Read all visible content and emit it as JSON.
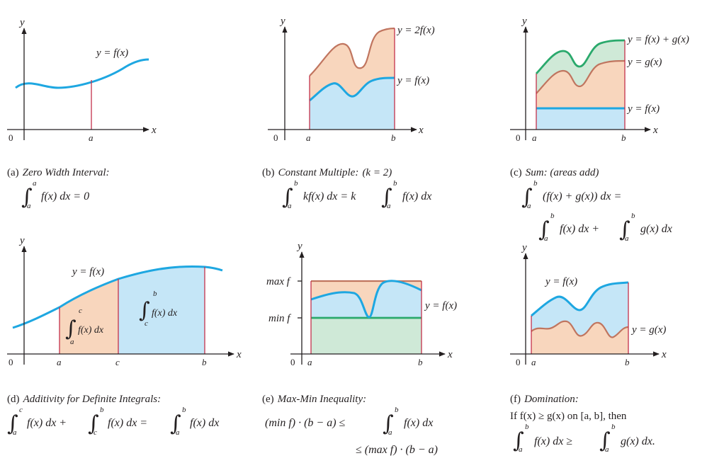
{
  "panels": [
    {
      "caption_label": "(a)",
      "caption_title": "Zero Width Interval:",
      "curve_label": "y = f(x)",
      "axis_y": "y",
      "axis_x": "x",
      "origin": "0",
      "tick_a": "a",
      "formula": {
        "int1_upper": "a",
        "int1_lower": "a",
        "text1": "f(x) dx  =  0"
      }
    },
    {
      "caption_label": "(b)",
      "caption_title": "Constant Multiple:",
      "caption_extra": "(k  =  2)",
      "curve_label_top": "y = 2f(x)",
      "curve_label_bottom": "y = f(x)",
      "axis_y": "y",
      "axis_x": "x",
      "origin": "0",
      "tick_a": "a",
      "tick_b": "b",
      "formula": {
        "int1_upper": "b",
        "int1_lower": "a",
        "text1": "kf(x) dx  =  k",
        "int2_upper": "b",
        "int2_lower": "a",
        "text2": "f(x) dx"
      }
    },
    {
      "caption_label": "(c)",
      "caption_title": "Sum: (areas add)",
      "curve_label_top": "y = f(x) + g(x)",
      "curve_label_mid": "y = g(x)",
      "curve_label_bottom": "y = f(x)",
      "axis_y": "y",
      "axis_x": "x",
      "origin": "0",
      "tick_a": "a",
      "tick_b": "b",
      "formula": {
        "int1_upper": "b",
        "int1_lower": "a",
        "text1": "(f(x) + g(x)) dx  =",
        "int2_upper": "b",
        "int2_lower": "a",
        "text2": "f(x) dx  +",
        "int3_upper": "b",
        "int3_lower": "a",
        "text3": "g(x) dx"
      }
    },
    {
      "caption_label": "(d)",
      "caption_title": "Additivity for Definite Integrals:",
      "curve_label": "y = f(x)",
      "axis_y": "y",
      "axis_x": "x",
      "origin": "0",
      "tick_a": "a",
      "tick_c": "c",
      "tick_b": "b",
      "region1": {
        "upper": "c",
        "lower": "a",
        "text": "f(x) dx"
      },
      "region2": {
        "upper": "b",
        "lower": "c",
        "text": "f(x) dx"
      },
      "formula": {
        "int1_upper": "c",
        "int1_lower": "a",
        "text1": "f(x) dx  +",
        "int2_upper": "b",
        "int2_lower": "c",
        "text2": "f(x) dx  =",
        "int3_upper": "b",
        "int3_lower": "a",
        "text3": "f(x) dx"
      }
    },
    {
      "caption_label": "(e)",
      "caption_title": "Max-Min Inequality:",
      "curve_label": "y = f(x)",
      "max_label": "max f",
      "min_label": "min f",
      "axis_y": "y",
      "axis_x": "x",
      "origin": "0",
      "tick_a": "a",
      "tick_b": "b",
      "formula": {
        "line1_text": "(min f) · (b − a)  ≤",
        "int1_upper": "b",
        "int1_lower": "a",
        "text1": "f(x) dx",
        "line2_text": "≤ (max f) · (b − a)"
      }
    },
    {
      "caption_label": "(f)",
      "caption_title": "Domination:",
      "curve_label_top": "y = f(x)",
      "curve_label_bottom": "y = g(x)",
      "axis_y": "y",
      "axis_x": "x",
      "origin": "0",
      "tick_a": "a",
      "tick_b": "b",
      "formula": {
        "line1_text": "If f(x)  ≥  g(x) on [a, b], then",
        "int1_upper": "b",
        "int1_lower": "a",
        "text1": "f(x) dx  ≥",
        "int2_upper": "b",
        "int2_lower": "a",
        "text2": "g(x) dx."
      }
    }
  ],
  "colors": {
    "blue_curve": "#1ea7e1",
    "blue_fill": "#c5e6f7",
    "orange_fill": "#f8d6bd",
    "brown_curve": "#c0755f",
    "green_curve": "#2aa96c",
    "green_fill": "#cfe9d7",
    "red_line": "#c4314b"
  }
}
